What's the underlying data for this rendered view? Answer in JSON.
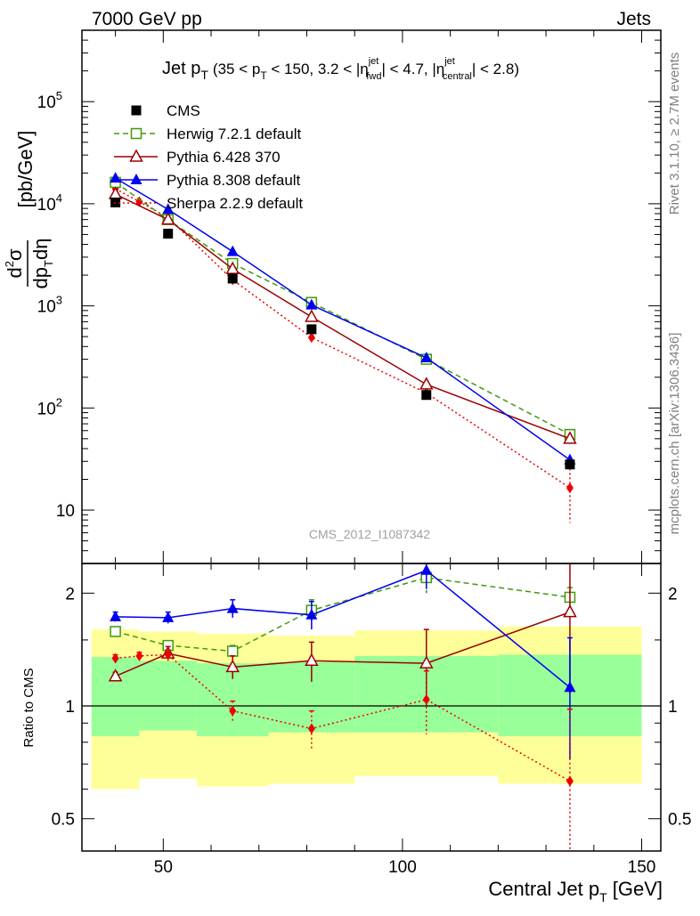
{
  "header": {
    "left": "7000 GeV pp",
    "right": "Jets"
  },
  "side_labels": {
    "rivet": "Rivet 3.1.10, ≥ 2.7M events",
    "mcplots": "mcplots.cern.ch [arXiv:1306.3436]"
  },
  "watermark": "CMS_2012_I1087342",
  "chart_data": {
    "type": "line",
    "title": {
      "main": "Jet p",
      "main_sub": "T",
      "range_open": "(35 < p",
      "range_sub": "T",
      "range_text": " < 150, 3.2 < |η",
      "fwd_sup": "jet",
      "fwd_sub": "fwd",
      "mid": "| < 4.7, |η",
      "cen_sup": "jet",
      "cen_sub": "central",
      "end": "| < 2.8)"
    },
    "xlabel": {
      "text": "Central Jet p",
      "sub": "T",
      "unit": " [GeV]"
    },
    "ylabel": {
      "num": "d",
      "num_sup": "2",
      "num_rest": "σ",
      "den": "dp",
      "den_sub": "T",
      "den_rest": "dη",
      "unit": "[pb/GeV]"
    },
    "xlim": [
      33,
      154
    ],
    "ylim": [
      3,
      500000
    ],
    "yscale": "log",
    "x_ticks": [
      50,
      100,
      150
    ],
    "y_ticks": [
      {
        "value": 10,
        "label": "10",
        "sup": ""
      },
      {
        "value": 100,
        "label": "10",
        "sup": "2"
      },
      {
        "value": 1000,
        "label": "10",
        "sup": "3"
      },
      {
        "value": 10000,
        "label": "10",
        "sup": "4"
      },
      {
        "value": 100000,
        "label": "10",
        "sup": "5"
      }
    ],
    "series": [
      {
        "name": "CMS",
        "marker": "square-filled",
        "color": "#000000",
        "dash": "none",
        "x": [
          40,
          51,
          64.5,
          81,
          105,
          135
        ],
        "y": [
          10300,
          5100,
          1850,
          590,
          134,
          28
        ],
        "yerr": [
          0,
          0,
          0,
          0,
          0,
          0
        ]
      },
      {
        "name": "Herwig 7.2.1 default",
        "marker": "square-open",
        "color": "#3f9b0b",
        "dash": "dashed",
        "x": [
          40,
          51,
          64.5,
          81,
          105,
          135
        ],
        "y": [
          16200,
          7000,
          2600,
          1080,
          300,
          55
        ],
        "yerr": [
          0,
          0,
          0,
          0,
          0,
          0
        ]
      },
      {
        "name": "Pythia 6.428 370",
        "marker": "triangle-open",
        "color": "#9b0000",
        "dash": "none",
        "x": [
          40,
          51,
          64.5,
          81,
          105,
          135
        ],
        "y": [
          12400,
          7000,
          2300,
          780,
          170,
          50
        ],
        "yerr": [
          0,
          0,
          0,
          0,
          0,
          0
        ]
      },
      {
        "name": "Pythia 8.308 default",
        "marker": "triangle-filled",
        "color": "#0000ee",
        "dash": "none",
        "x": [
          40,
          51,
          64.5,
          81,
          105,
          135
        ],
        "y": [
          17800,
          8800,
          3400,
          1020,
          310,
          31
        ],
        "yerr": [
          0,
          0,
          0,
          0,
          0,
          0
        ]
      },
      {
        "name": "Sherpa 2.2.9 default",
        "marker": "diamond-filled",
        "color": "#ee0000",
        "dash": "dotted",
        "x": [
          40,
          45,
          51,
          64.5,
          81,
          105,
          135
        ],
        "y": [
          14000,
          10500,
          7300,
          1800,
          490,
          140,
          16.5
        ],
        "yerr": [
          0,
          0,
          0,
          0,
          0,
          0,
          9
        ]
      }
    ],
    "ratio": {
      "ylabel": "Ratio to CMS",
      "ylim": [
        0.41,
        2.4
      ],
      "yscale": "log",
      "y_ticks": [
        0.5,
        1,
        2
      ],
      "bands": [
        {
          "x": [
            35,
            45
          ],
          "y1": [
            0.6,
            1.6
          ],
          "y2": [
            0.83,
            1.35
          ]
        },
        {
          "x": [
            45,
            57
          ],
          "y1": [
            0.64,
            1.58
          ],
          "y2": [
            0.86,
            1.32
          ]
        },
        {
          "x": [
            57,
            72
          ],
          "y1": [
            0.61,
            1.56
          ],
          "y2": [
            0.83,
            1.3
          ]
        },
        {
          "x": [
            72,
            90
          ],
          "y1": [
            0.62,
            1.54
          ],
          "y2": [
            0.85,
            1.31
          ]
        },
        {
          "x": [
            90,
            120
          ],
          "y1": [
            0.65,
            1.59
          ],
          "y2": [
            0.85,
            1.36
          ]
        },
        {
          "x": [
            120,
            150
          ],
          "y1": [
            0.62,
            1.63
          ],
          "y2": [
            0.83,
            1.37
          ]
        }
      ],
      "series": [
        {
          "name": "Herwig 7.2.1 default",
          "x": [
            40,
            51,
            64.5,
            81,
            105,
            135
          ],
          "y": [
            1.58,
            1.45,
            1.4,
            1.8,
            2.2,
            1.95
          ],
          "yerr": [
            0.02,
            0.04,
            0.05,
            0.12,
            0.2,
            0.12
          ]
        },
        {
          "name": "Pythia 6.428 370",
          "x": [
            40,
            51,
            64.5,
            81,
            105,
            135
          ],
          "y": [
            1.2,
            1.38,
            1.27,
            1.32,
            1.3,
            1.78
          ],
          "yerr": [
            0.03,
            0.06,
            0.09,
            0.16,
            0.3,
            0.7
          ]
        },
        {
          "name": "Pythia 8.308 default",
          "x": [
            40,
            51,
            64.5,
            81,
            105,
            135
          ],
          "y": [
            1.73,
            1.72,
            1.82,
            1.75,
            2.3,
            1.12
          ],
          "yerr": [
            0.05,
            0.06,
            0.1,
            0.15,
            0.25,
            0.4
          ]
        },
        {
          "name": "Sherpa 2.2.9 default",
          "x": [
            40,
            45,
            51,
            64.5,
            81,
            105,
            135
          ],
          "y": [
            1.34,
            1.36,
            1.37,
            0.97,
            0.87,
            1.04,
            0.63
          ],
          "yerr": [
            0.03,
            0.03,
            0.04,
            0.06,
            0.1,
            0.2,
            0.35
          ]
        }
      ]
    }
  }
}
